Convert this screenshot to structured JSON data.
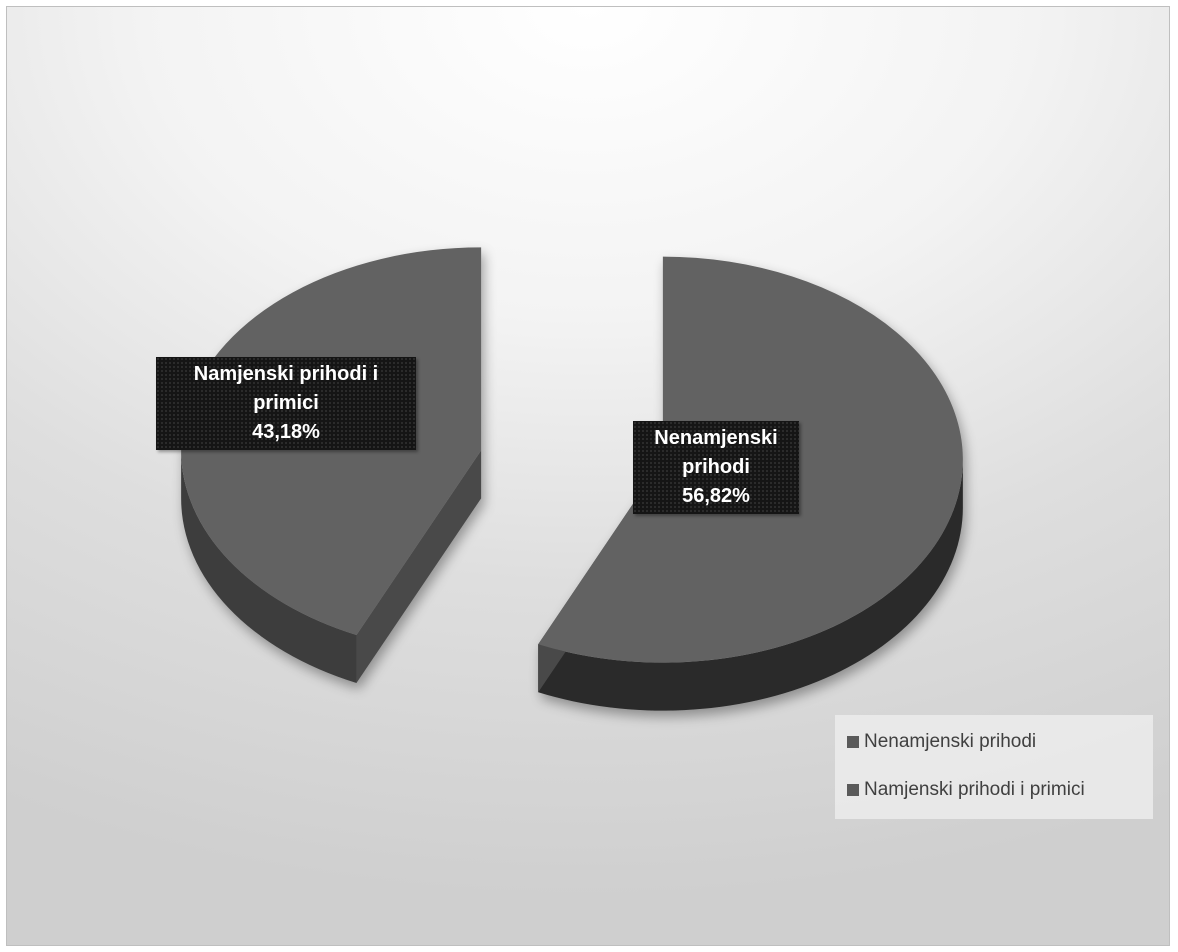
{
  "chart_data": {
    "type": "pie",
    "style": "3d-exploded",
    "slices": [
      {
        "name": "Nenamjenski prihodi",
        "label_lines": [
          "Nenamjenski",
          "prihodi"
        ],
        "value": 56.82,
        "value_label": "56,82%",
        "color": "#626262",
        "side_color": "#2b2b2b"
      },
      {
        "name": "Namjenski prihodi i primici",
        "label_lines": [
          "Namjenski prihodi i",
          "primici"
        ],
        "value": 43.18,
        "value_label": "43,18%",
        "color": "#626262",
        "side_color": "#3d3d3d"
      }
    ],
    "legend": {
      "position": "bottom-right",
      "items": [
        "Nenamjenski prihodi",
        "Namjenski prihodi i primici"
      ],
      "swatch_color": "#5a5a5a"
    }
  }
}
